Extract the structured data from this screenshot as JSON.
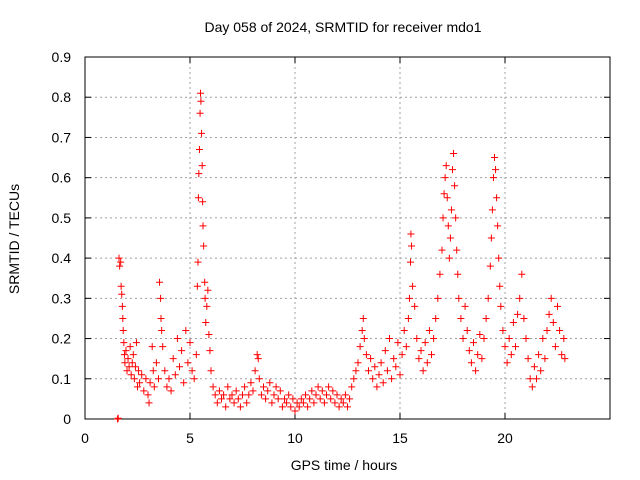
{
  "chart_data": {
    "type": "scatter",
    "title": "Day 058 of 2024, SRMTID for receiver mdo1",
    "xlabel": "GPS time / hours",
    "ylabel": "SRMTID / TECUs",
    "xlim": [
      0,
      25
    ],
    "ylim": [
      0,
      0.9
    ],
    "xticks": [
      0,
      5,
      10,
      15,
      20
    ],
    "yticks": [
      0,
      0.1,
      0.2,
      0.3,
      0.4,
      0.5,
      0.6,
      0.7,
      0.8,
      0.9
    ],
    "xtick_labels": [
      "0",
      "5",
      "10",
      "15",
      "20"
    ],
    "ytick_labels": [
      "0",
      "0.1",
      "0.2",
      "0.3",
      "0.4",
      "0.5",
      "0.6",
      "0.7",
      "0.8",
      "0.9"
    ],
    "grid": true,
    "marker": "+",
    "color": "#ff0000",
    "series": [
      {
        "name": "SRMTID",
        "points": [
          [
            1.55,
            0.0
          ],
          [
            1.58,
            0.002
          ],
          [
            1.62,
            0.4
          ],
          [
            1.65,
            0.38
          ],
          [
            1.7,
            0.39
          ],
          [
            1.72,
            0.33
          ],
          [
            1.75,
            0.31
          ],
          [
            1.78,
            0.28
          ],
          [
            1.8,
            0.25
          ],
          [
            1.82,
            0.22
          ],
          [
            1.85,
            0.19
          ],
          [
            1.88,
            0.16
          ],
          [
            1.9,
            0.14
          ],
          [
            1.95,
            0.17
          ],
          [
            2.0,
            0.12
          ],
          [
            2.05,
            0.15
          ],
          [
            2.1,
            0.13
          ],
          [
            2.15,
            0.18
          ],
          [
            2.2,
            0.11
          ],
          [
            2.25,
            0.14
          ],
          [
            2.3,
            0.16
          ],
          [
            2.35,
            0.1
          ],
          [
            2.4,
            0.13
          ],
          [
            2.45,
            0.19
          ],
          [
            2.5,
            0.08
          ],
          [
            2.55,
            0.12
          ],
          [
            2.6,
            0.09
          ],
          [
            2.7,
            0.11
          ],
          [
            2.8,
            0.07
          ],
          [
            2.9,
            0.1
          ],
          [
            3.0,
            0.06
          ],
          [
            3.05,
            0.04
          ],
          [
            3.1,
            0.09
          ],
          [
            3.2,
            0.18
          ],
          [
            3.25,
            0.12
          ],
          [
            3.3,
            0.08
          ],
          [
            3.4,
            0.14
          ],
          [
            3.5,
            0.1
          ],
          [
            3.55,
            0.34
          ],
          [
            3.6,
            0.3
          ],
          [
            3.62,
            0.25
          ],
          [
            3.65,
            0.22
          ],
          [
            3.7,
            0.18
          ],
          [
            3.8,
            0.12
          ],
          [
            3.9,
            0.08
          ],
          [
            4.0,
            0.1
          ],
          [
            4.1,
            0.07
          ],
          [
            4.2,
            0.15
          ],
          [
            4.3,
            0.11
          ],
          [
            4.4,
            0.2
          ],
          [
            4.5,
            0.13
          ],
          [
            4.6,
            0.17
          ],
          [
            4.7,
            0.09
          ],
          [
            4.8,
            0.22
          ],
          [
            4.9,
            0.14
          ],
          [
            5.0,
            0.19
          ],
          [
            5.1,
            0.12
          ],
          [
            5.2,
            0.1
          ],
          [
            5.3,
            0.16
          ],
          [
            5.35,
            0.33
          ],
          [
            5.38,
            0.39
          ],
          [
            5.4,
            0.55
          ],
          [
            5.42,
            0.61
          ],
          [
            5.45,
            0.67
          ],
          [
            5.48,
            0.76
          ],
          [
            5.5,
            0.81
          ],
          [
            5.52,
            0.79
          ],
          [
            5.55,
            0.71
          ],
          [
            5.58,
            0.63
          ],
          [
            5.6,
            0.54
          ],
          [
            5.62,
            0.48
          ],
          [
            5.65,
            0.43
          ],
          [
            5.7,
            0.34
          ],
          [
            5.72,
            0.3
          ],
          [
            5.75,
            0.24
          ],
          [
            5.8,
            0.28
          ],
          [
            5.85,
            0.32
          ],
          [
            5.9,
            0.21
          ],
          [
            5.95,
            0.17
          ],
          [
            6.0,
            0.12
          ],
          [
            6.1,
            0.08
          ],
          [
            6.2,
            0.06
          ],
          [
            6.3,
            0.04
          ],
          [
            6.4,
            0.07
          ],
          [
            6.5,
            0.05
          ],
          [
            6.6,
            0.06
          ],
          [
            6.7,
            0.03
          ],
          [
            6.8,
            0.08
          ],
          [
            6.9,
            0.05
          ],
          [
            7.0,
            0.06
          ],
          [
            7.1,
            0.04
          ],
          [
            7.2,
            0.07
          ],
          [
            7.3,
            0.05
          ],
          [
            7.4,
            0.03
          ],
          [
            7.5,
            0.06
          ],
          [
            7.6,
            0.08
          ],
          [
            7.7,
            0.04
          ],
          [
            7.8,
            0.06
          ],
          [
            7.9,
            0.09
          ],
          [
            8.0,
            0.07
          ],
          [
            8.1,
            0.12
          ],
          [
            8.2,
            0.16
          ],
          [
            8.25,
            0.15
          ],
          [
            8.3,
            0.1
          ],
          [
            8.4,
            0.06
          ],
          [
            8.5,
            0.08
          ],
          [
            8.6,
            0.05
          ],
          [
            8.7,
            0.07
          ],
          [
            8.8,
            0.09
          ],
          [
            8.9,
            0.04
          ],
          [
            9.0,
            0.06
          ],
          [
            9.1,
            0.08
          ],
          [
            9.2,
            0.05
          ],
          [
            9.3,
            0.07
          ],
          [
            9.4,
            0.03
          ],
          [
            9.5,
            0.05
          ],
          [
            9.6,
            0.04
          ],
          [
            9.7,
            0.06
          ],
          [
            9.8,
            0.03
          ],
          [
            9.9,
            0.05
          ],
          [
            10.0,
            0.02
          ],
          [
            10.1,
            0.04
          ],
          [
            10.2,
            0.03
          ],
          [
            10.3,
            0.05
          ],
          [
            10.4,
            0.04
          ],
          [
            10.5,
            0.06
          ],
          [
            10.6,
            0.03
          ],
          [
            10.7,
            0.05
          ],
          [
            10.8,
            0.07
          ],
          [
            10.9,
            0.04
          ],
          [
            11.0,
            0.06
          ],
          [
            11.1,
            0.08
          ],
          [
            11.2,
            0.05
          ],
          [
            11.3,
            0.07
          ],
          [
            11.4,
            0.04
          ],
          [
            11.5,
            0.06
          ],
          [
            11.6,
            0.08
          ],
          [
            11.7,
            0.05
          ],
          [
            11.8,
            0.07
          ],
          [
            11.9,
            0.04
          ],
          [
            12.0,
            0.06
          ],
          [
            12.1,
            0.03
          ],
          [
            12.2,
            0.05
          ],
          [
            12.3,
            0.04
          ],
          [
            12.4,
            0.06
          ],
          [
            12.5,
            0.03
          ],
          [
            12.6,
            0.05
          ],
          [
            12.7,
            0.08
          ],
          [
            12.8,
            0.1
          ],
          [
            12.9,
            0.12
          ],
          [
            13.0,
            0.14
          ],
          [
            13.1,
            0.18
          ],
          [
            13.2,
            0.22
          ],
          [
            13.25,
            0.25
          ],
          [
            13.3,
            0.2
          ],
          [
            13.4,
            0.16
          ],
          [
            13.5,
            0.12
          ],
          [
            13.6,
            0.15
          ],
          [
            13.7,
            0.1
          ],
          [
            13.8,
            0.13
          ],
          [
            13.9,
            0.08
          ],
          [
            14.0,
            0.11
          ],
          [
            14.1,
            0.14
          ],
          [
            14.2,
            0.09
          ],
          [
            14.3,
            0.17
          ],
          [
            14.4,
            0.12
          ],
          [
            14.5,
            0.2
          ],
          [
            14.6,
            0.1
          ],
          [
            14.7,
            0.15
          ],
          [
            14.8,
            0.13
          ],
          [
            14.9,
            0.19
          ],
          [
            15.0,
            0.11
          ],
          [
            15.1,
            0.16
          ],
          [
            15.2,
            0.22
          ],
          [
            15.3,
            0.18
          ],
          [
            15.4,
            0.25
          ],
          [
            15.45,
            0.3
          ],
          [
            15.5,
            0.39
          ],
          [
            15.52,
            0.46
          ],
          [
            15.55,
            0.43
          ],
          [
            15.6,
            0.33
          ],
          [
            15.7,
            0.28
          ],
          [
            15.8,
            0.2
          ],
          [
            15.9,
            0.15
          ],
          [
            16.0,
            0.17
          ],
          [
            16.1,
            0.12
          ],
          [
            16.2,
            0.19
          ],
          [
            16.3,
            0.14
          ],
          [
            16.4,
            0.22
          ],
          [
            16.5,
            0.16
          ],
          [
            16.6,
            0.2
          ],
          [
            16.7,
            0.25
          ],
          [
            16.8,
            0.3
          ],
          [
            16.9,
            0.36
          ],
          [
            17.0,
            0.42
          ],
          [
            17.05,
            0.5
          ],
          [
            17.1,
            0.56
          ],
          [
            17.15,
            0.6
          ],
          [
            17.2,
            0.63
          ],
          [
            17.25,
            0.55
          ],
          [
            17.3,
            0.48
          ],
          [
            17.35,
            0.4
          ],
          [
            17.4,
            0.45
          ],
          [
            17.45,
            0.52
          ],
          [
            17.5,
            0.62
          ],
          [
            17.55,
            0.66
          ],
          [
            17.6,
            0.58
          ],
          [
            17.65,
            0.5
          ],
          [
            17.7,
            0.42
          ],
          [
            17.75,
            0.36
          ],
          [
            17.8,
            0.3
          ],
          [
            17.9,
            0.25
          ],
          [
            18.0,
            0.2
          ],
          [
            18.1,
            0.28
          ],
          [
            18.2,
            0.22
          ],
          [
            18.3,
            0.17
          ],
          [
            18.4,
            0.14
          ],
          [
            18.5,
            0.19
          ],
          [
            18.6,
            0.12
          ],
          [
            18.7,
            0.16
          ],
          [
            18.8,
            0.21
          ],
          [
            18.9,
            0.15
          ],
          [
            19.0,
            0.2
          ],
          [
            19.1,
            0.25
          ],
          [
            19.2,
            0.3
          ],
          [
            19.3,
            0.38
          ],
          [
            19.35,
            0.45
          ],
          [
            19.4,
            0.52
          ],
          [
            19.45,
            0.6
          ],
          [
            19.5,
            0.65
          ],
          [
            19.55,
            0.62
          ],
          [
            19.6,
            0.55
          ],
          [
            19.65,
            0.48
          ],
          [
            19.7,
            0.4
          ],
          [
            19.75,
            0.33
          ],
          [
            19.8,
            0.28
          ],
          [
            19.9,
            0.22
          ],
          [
            20.0,
            0.18
          ],
          [
            20.1,
            0.14
          ],
          [
            20.2,
            0.2
          ],
          [
            20.3,
            0.16
          ],
          [
            20.4,
            0.24
          ],
          [
            20.5,
            0.18
          ],
          [
            20.6,
            0.26
          ],
          [
            20.7,
            0.3
          ],
          [
            20.8,
            0.36
          ],
          [
            20.9,
            0.25
          ],
          [
            21.0,
            0.2
          ],
          [
            21.1,
            0.15
          ],
          [
            21.2,
            0.1
          ],
          [
            21.3,
            0.08
          ],
          [
            21.4,
            0.13
          ],
          [
            21.5,
            0.1
          ],
          [
            21.6,
            0.16
          ],
          [
            21.7,
            0.12
          ],
          [
            21.8,
            0.2
          ],
          [
            21.9,
            0.15
          ],
          [
            22.0,
            0.22
          ],
          [
            22.1,
            0.26
          ],
          [
            22.2,
            0.3
          ],
          [
            22.3,
            0.24
          ],
          [
            22.4,
            0.18
          ],
          [
            22.5,
            0.28
          ],
          [
            22.6,
            0.22
          ],
          [
            22.7,
            0.16
          ],
          [
            22.8,
            0.2
          ],
          [
            22.85,
            0.15
          ]
        ]
      }
    ]
  }
}
